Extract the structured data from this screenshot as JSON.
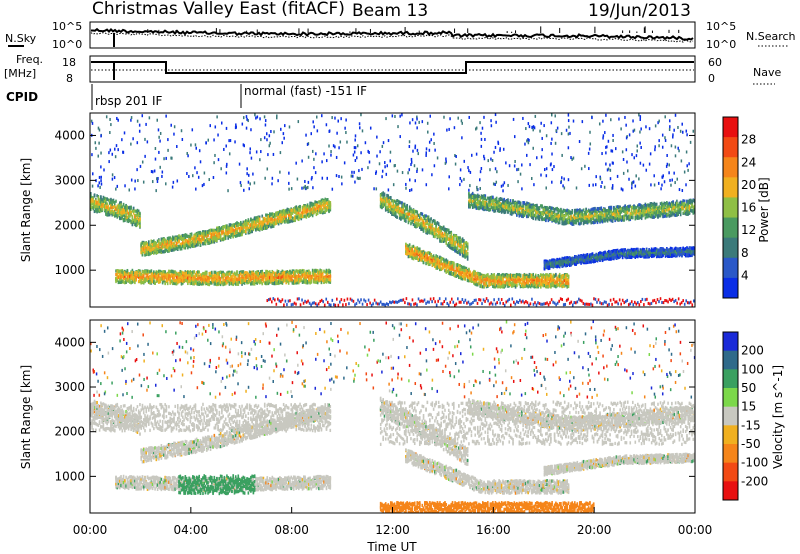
{
  "header": {
    "title": "Christmas Valley East (fitACF)",
    "beam": "Beam 13",
    "date": "19/Jun/2013"
  },
  "strip": {
    "nsky_label": "N.Sky",
    "nsearch_label": "N.Search",
    "noise_top_left": "10^5",
    "noise_bottom_left": "10^0",
    "noise_top_right": "10^5",
    "noise_bottom_right": "10^0",
    "freq_label_1": "Freq.",
    "freq_label_2": "[MHz]",
    "nave_label": "Nave",
    "freq_top_left": "18",
    "freq_bottom_left": "8",
    "nave_top_right": "60",
    "nave_bottom_right": "0",
    "cpid_label": "CPID",
    "cpid_1": "rbsp 201 IF",
    "cpid_2": "normal (fast) -151 IF"
  },
  "chart_data": [
    {
      "type": "heatmap",
      "title": "",
      "xlabel": "Time UT",
      "ylabel": "Slant Range [km]",
      "xlim": [
        "00:00",
        "24:00"
      ],
      "ylim": [
        180,
        4500
      ],
      "x_ticks": [
        "00:00",
        "04:00",
        "08:00",
        "12:00",
        "16:00",
        "20:00",
        "00:00"
      ],
      "y_ticks": [
        1000,
        2000,
        3000,
        4000
      ],
      "colorbar": {
        "label": "Power [dB]",
        "ticks": [
          4,
          8,
          12,
          16,
          20,
          24,
          28
        ],
        "colors": [
          "#0a2ee6",
          "#2a58c8",
          "#3b7a7a",
          "#4a9a60",
          "#8fbf45",
          "#f0b020",
          "#f5851a",
          "#f24a14",
          "#e81010"
        ]
      },
      "bands": [
        {
          "t0": 0.0,
          "r0": 2550,
          "t1": 1.0,
          "r1": 2400,
          "t2": 2.0,
          "r2": 2150,
          "width": 380,
          "power": 20
        },
        {
          "t0": 2.0,
          "r0": 1500,
          "t1": 4.5,
          "r1": 1750,
          "t2": 9.5,
          "r2": 2500,
          "width": 300,
          "power": 22
        },
        {
          "t0": 1.0,
          "r0": 900,
          "t1": 5.0,
          "r1": 850,
          "t2": 9.5,
          "r2": 900,
          "width": 280,
          "power": 24
        },
        {
          "t0": 11.5,
          "r0": 2600,
          "t1": 13.5,
          "r1": 2000,
          "t2": 15.0,
          "r2": 1450,
          "width": 380,
          "power": 20
        },
        {
          "t0": 12.5,
          "r0": 1500,
          "t1": 15.5,
          "r1": 800,
          "t2": 19.0,
          "r2": 800,
          "width": 280,
          "power": 24
        },
        {
          "t0": 15.0,
          "r0": 2600,
          "t1": 19.0,
          "r1": 2200,
          "t2": 24.0,
          "r2": 2450,
          "width": 320,
          "power": 18
        },
        {
          "t0": 18.0,
          "r0": 1150,
          "t1": 21.0,
          "r1": 1400,
          "t2": 24.0,
          "r2": 1450,
          "width": 180,
          "power": 10
        }
      ]
    },
    {
      "type": "heatmap",
      "title": "",
      "xlabel": "Time UT",
      "ylabel": "Slant Range [km]",
      "xlim": [
        "00:00",
        "24:00"
      ],
      "ylim": [
        180,
        4500
      ],
      "x_ticks": [
        "00:00",
        "04:00",
        "08:00",
        "12:00",
        "16:00",
        "20:00",
        "00:00"
      ],
      "y_ticks": [
        1000,
        2000,
        3000,
        4000
      ],
      "colorbar": {
        "label": "Velocity [m s^-1]",
        "ticks": [
          200,
          100,
          50,
          15,
          -15,
          -50,
          -100,
          -200
        ],
        "colors": [
          "#1a2ad8",
          "#2f6a8a",
          "#3aa060",
          "#7cd84a",
          "#c8c8c0",
          "#f0b020",
          "#f5851a",
          "#f24a14",
          "#e81010"
        ]
      },
      "regions": [
        {
          "t0": 0.0,
          "t1": 9.5,
          "r0": 2050,
          "r1": 2650,
          "velocity": 0,
          "label": "ground scatter"
        },
        {
          "t0": 11.5,
          "t1": 24.0,
          "r0": 1750,
          "r1": 2700,
          "velocity": 0,
          "label": "ground scatter"
        },
        {
          "t0": 3.5,
          "t1": 6.5,
          "r0": 650,
          "r1": 1050,
          "velocity": 40,
          "label": "green patch"
        },
        {
          "t0": 11.5,
          "t1": 20.0,
          "r0": 200,
          "r1": 450,
          "velocity": -60,
          "label": "orange near range"
        }
      ]
    }
  ]
}
